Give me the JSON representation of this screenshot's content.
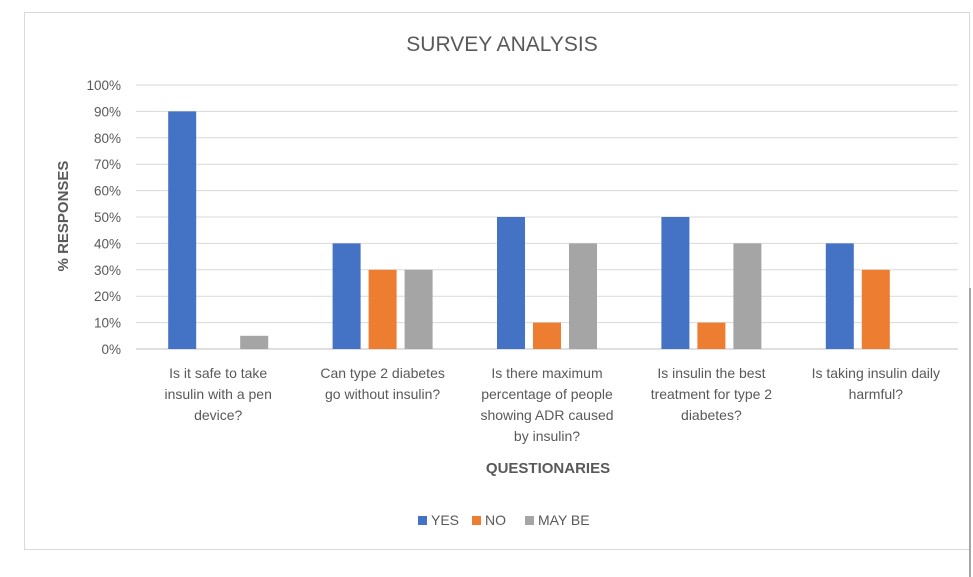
{
  "chart_data": {
    "type": "bar",
    "title": "SURVEY ANALYSIS",
    "xlabel": "QUESTIONARIES",
    "ylabel": "% RESPONSES",
    "ylim": [
      0,
      100
    ],
    "y_ticks": [
      "0%",
      "10%",
      "20%",
      "30%",
      "40%",
      "50%",
      "60%",
      "70%",
      "80%",
      "90%",
      "100%"
    ],
    "categories": [
      [
        "Is it safe to take",
        "insulin with a pen",
        "device?"
      ],
      [
        "Can type 2 diabetes",
        "go without insulin?"
      ],
      [
        "Is there maximum",
        "percentage of people",
        "showing ADR caused",
        "by insulin?"
      ],
      [
        "Is insulin the best",
        "treatment for type 2",
        "diabetes?"
      ],
      [
        "Is taking insulin daily",
        "harmful?"
      ]
    ],
    "series": [
      {
        "name": "YES",
        "color": "#4472c4",
        "values": [
          90,
          40,
          50,
          50,
          40
        ]
      },
      {
        "name": "NO",
        "color": "#ed7d31",
        "values": [
          0,
          30,
          10,
          10,
          30
        ]
      },
      {
        "name": "MAY BE",
        "color": "#a5a5a5",
        "values": [
          5,
          30,
          40,
          40,
          0
        ]
      }
    ],
    "grid": true,
    "legend": "bottom-center"
  }
}
